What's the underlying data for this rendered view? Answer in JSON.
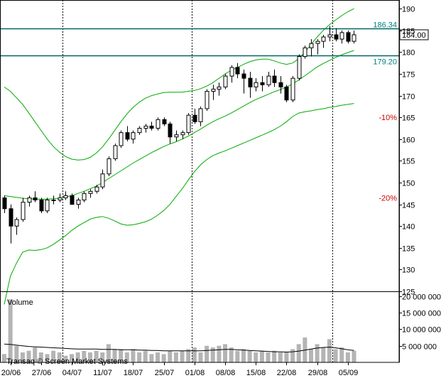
{
  "chart_data": [
    {
      "type": "candlestick",
      "title": "",
      "ylim": [
        125,
        192
      ],
      "y_ticks": [
        125,
        130,
        135,
        140,
        145,
        150,
        155,
        160,
        165,
        170,
        175,
        180,
        185,
        190
      ],
      "y_tick_labels": [
        "125",
        "130",
        "135",
        "140",
        "145",
        "150",
        "155",
        "160",
        "165",
        "170",
        "175",
        "180",
        "185",
        "190"
      ],
      "x_dates": [
        "2011-06-17",
        "2011-06-20",
        "2011-06-21",
        "2011-06-22",
        "2011-06-23",
        "2011-06-24",
        "2011-06-27",
        "2011-06-28",
        "2011-06-29",
        "2011-06-30",
        "2011-07-01",
        "2011-07-04",
        "2011-07-05",
        "2011-07-06",
        "2011-07-07",
        "2011-07-08",
        "2011-07-11",
        "2011-07-12",
        "2011-07-13",
        "2011-07-14",
        "2011-07-15",
        "2011-07-18",
        "2011-07-19",
        "2011-07-20",
        "2011-07-21",
        "2011-07-22",
        "2011-07-25",
        "2011-07-26",
        "2011-07-27",
        "2011-07-28",
        "2011-07-29",
        "2011-08-01",
        "2011-08-02",
        "2011-08-03",
        "2011-08-04",
        "2011-08-05",
        "2011-08-08",
        "2011-08-09",
        "2011-08-10",
        "2011-08-11",
        "2011-08-12",
        "2011-08-15",
        "2011-08-16",
        "2011-08-17",
        "2011-08-18",
        "2011-08-19",
        "2011-08-22",
        "2011-08-23",
        "2011-08-24",
        "2011-08-25",
        "2011-08-26",
        "2011-08-29",
        "2011-08-30",
        "2011-08-31",
        "2011-09-01",
        "2011-09-02",
        "2011-09-05",
        "2011-09-06"
      ],
      "x_tick_labels": [
        "20/06",
        "27/06",
        "04/07",
        "11/07",
        "18/07",
        "25/07",
        "01/08",
        "08/08",
        "15/08",
        "22/08",
        "29/08",
        "05/09"
      ],
      "x_tick_dates": [
        "2011-06-20",
        "2011-06-27",
        "2011-07-04",
        "2011-07-11",
        "2011-07-18",
        "2011-07-25",
        "2011-08-01",
        "2011-08-08",
        "2011-08-15",
        "2011-08-22",
        "2011-08-29",
        "2011-09-05"
      ],
      "month_separators": [
        "2011-07-01",
        "2011-08-01",
        "2011-09-01"
      ],
      "candles": [
        [
          146.5,
          147.0,
          143.0,
          144.0
        ],
        [
          144.0,
          145.0,
          136.0,
          140.0
        ],
        [
          140.0,
          142.0,
          138.0,
          141.5
        ],
        [
          141.5,
          146.5,
          141.0,
          145.5
        ],
        [
          145.5,
          147.0,
          144.5,
          146.5
        ],
        [
          146.5,
          148.0,
          145.5,
          146.0
        ],
        [
          146.0,
          146.5,
          143.0,
          143.5
        ],
        [
          143.5,
          146.5,
          143.0,
          146.0
        ],
        [
          146.0,
          147.0,
          145.0,
          146.0
        ],
        [
          146.0,
          147.5,
          145.5,
          146.5
        ],
        [
          146.5,
          148.0,
          146.0,
          147.0
        ],
        [
          147.0,
          147.5,
          145.0,
          145.0
        ],
        [
          145.0,
          146.5,
          144.0,
          146.0
        ],
        [
          146.0,
          148.0,
          145.5,
          147.5
        ],
        [
          147.5,
          148.5,
          146.5,
          148.0
        ],
        [
          148.0,
          149.5,
          147.5,
          149.0
        ],
        [
          149.0,
          153.0,
          148.5,
          152.0
        ],
        [
          152.0,
          156.0,
          151.5,
          155.5
        ],
        [
          155.5,
          159.0,
          155.0,
          158.5
        ],
        [
          158.5,
          162.0,
          158.0,
          161.5
        ],
        [
          161.5,
          163.0,
          159.5,
          160.0
        ],
        [
          160.0,
          162.0,
          159.0,
          161.5
        ],
        [
          161.5,
          163.0,
          161.0,
          162.5
        ],
        [
          162.5,
          163.5,
          161.5,
          163.0
        ],
        [
          163.0,
          164.0,
          162.0,
          162.5
        ],
        [
          162.5,
          165.0,
          162.0,
          164.5
        ],
        [
          164.5,
          165.0,
          163.0,
          163.5
        ],
        [
          163.5,
          164.0,
          159.0,
          160.5
        ],
        [
          160.5,
          162.0,
          159.5,
          161.0
        ],
        [
          161.0,
          162.0,
          160.0,
          161.5
        ],
        [
          161.5,
          166.0,
          161.0,
          165.5
        ],
        [
          165.5,
          167.0,
          163.5,
          164.0
        ],
        [
          164.0,
          167.5,
          163.0,
          167.0
        ],
        [
          167.0,
          171.5,
          166.5,
          171.0
        ],
        [
          171.0,
          172.5,
          169.0,
          171.5
        ],
        [
          171.5,
          173.0,
          170.0,
          172.0
        ],
        [
          172.0,
          175.0,
          171.5,
          174.5
        ],
        [
          174.5,
          177.0,
          173.0,
          176.5
        ],
        [
          176.5,
          177.5,
          174.0,
          175.0
        ],
        [
          175.0,
          176.0,
          170.5,
          174.0
        ],
        [
          174.0,
          175.5,
          169.5,
          172.0
        ],
        [
          172.0,
          174.0,
          171.0,
          173.0
        ],
        [
          173.0,
          174.5,
          171.0,
          172.5
        ],
        [
          172.5,
          175.5,
          172.0,
          174.5
        ],
        [
          174.5,
          176.0,
          172.0,
          173.0
        ],
        [
          173.0,
          174.5,
          170.5,
          172.0
        ],
        [
          172.0,
          172.5,
          168.5,
          169.0
        ],
        [
          169.0,
          174.5,
          168.5,
          174.0
        ],
        [
          174.0,
          179.5,
          173.5,
          179.0
        ],
        [
          179.0,
          181.5,
          178.5,
          181.0
        ],
        [
          181.0,
          183.0,
          179.0,
          182.0
        ],
        [
          182.0,
          183.0,
          179.5,
          182.5
        ],
        [
          182.5,
          184.0,
          181.0,
          183.5
        ],
        [
          183.5,
          186.0,
          182.5,
          184.0
        ],
        [
          184.0,
          185.5,
          182.5,
          183.0
        ],
        [
          183.0,
          185.0,
          182.0,
          184.5
        ],
        [
          184.5,
          185.0,
          182.0,
          182.5
        ],
        [
          182.5,
          185.0,
          182.0,
          184.0
        ]
      ],
      "candle_fields": [
        "open",
        "high",
        "low",
        "close"
      ],
      "bollinger_mid": [
        147.0,
        146.8,
        146.6,
        146.4,
        146.3,
        146.2,
        146.2,
        146.2,
        146.3,
        146.4,
        146.7,
        147.0,
        147.5,
        148.0,
        148.6,
        149.2,
        150.0,
        150.9,
        151.8,
        152.7,
        153.6,
        154.5,
        155.3,
        156.1,
        156.9,
        157.6,
        158.3,
        158.9,
        159.4,
        160.0,
        160.7,
        161.5,
        162.3,
        163.2,
        164.0,
        164.7,
        165.3,
        166.0,
        166.8,
        167.6,
        168.4,
        169.1,
        169.7,
        170.3,
        170.9,
        171.4,
        172.0,
        172.7,
        173.6,
        174.6,
        175.6,
        176.6,
        177.4,
        178.1,
        178.8,
        179.4,
        179.9,
        180.4
      ],
      "bollinger_upper": [
        172.0,
        171.0,
        169.5,
        168.0,
        166.0,
        164.0,
        162.0,
        160.0,
        158.3,
        157.0,
        156.0,
        155.4,
        155.2,
        155.3,
        155.8,
        156.8,
        158.2,
        160.0,
        162.0,
        164.0,
        165.8,
        167.3,
        168.5,
        169.4,
        170.0,
        170.4,
        170.7,
        170.8,
        170.8,
        170.8,
        171.0,
        171.2,
        171.6,
        172.2,
        173.0,
        174.0,
        175.0,
        175.8,
        176.5,
        177.2,
        177.8,
        178.2,
        178.4,
        178.4,
        178.0,
        177.5,
        177.2,
        177.5,
        178.5,
        180.0,
        181.8,
        183.5,
        185.0,
        186.3,
        187.4,
        188.4,
        189.3,
        190.0
      ],
      "bollinger_lower": [
        122.0,
        128.5,
        131.5,
        134.0,
        134.5,
        134.4,
        134.6,
        135.0,
        135.8,
        136.8,
        137.8,
        139.0,
        140.0,
        140.8,
        141.6,
        142.0,
        142.2,
        141.8,
        141.2,
        140.5,
        140.2,
        140.3,
        140.6,
        141.0,
        141.6,
        142.5,
        143.6,
        145.0,
        146.8,
        148.6,
        150.6,
        152.5,
        154.1,
        155.3,
        156.2,
        156.8,
        157.3,
        157.9,
        158.5,
        159.1,
        159.7,
        160.3,
        160.9,
        161.5,
        162.2,
        163.0,
        164.0,
        165.2,
        166.0,
        166.3,
        166.5,
        166.8,
        167.0,
        167.3,
        167.5,
        167.8,
        168.0,
        168.2
      ],
      "horizontal_levels": [
        {
          "value": 185.4,
          "label": ""
        },
        {
          "value": 179.2,
          "label": "179.20"
        }
      ],
      "price_labels": [
        {
          "value": 186.34,
          "label": "186.34"
        },
        {
          "value": 184.0,
          "label": "184.00",
          "boxed": true
        }
      ],
      "percent_labels": [
        {
          "value": 165.0,
          "label": "-10%"
        },
        {
          "value": 146.5,
          "label": "-20%"
        }
      ],
      "volume": {
        "title": "Volume",
        "ylim": [
          0,
          21000000
        ],
        "y_ticks": [
          5000000,
          10000000,
          15000000,
          20000000
        ],
        "y_tick_labels": [
          "5 000 000",
          "10 000 000",
          "15 000 000",
          "20 000 000"
        ],
        "bars": [
          2500000,
          19000000,
          5000000,
          3000000,
          3500000,
          4500000,
          3000000,
          2500000,
          3500000,
          3000000,
          2000000,
          2500000,
          3000000,
          3500000,
          3000000,
          3500000,
          3000000,
          5500000,
          4000000,
          4000000,
          3000000,
          4000000,
          3000000,
          3500000,
          2500000,
          3000000,
          2500000,
          3500000,
          3000000,
          3500000,
          4000000,
          4500000,
          3000000,
          5000000,
          4500000,
          5000000,
          5500000,
          4500000,
          3500000,
          4000000,
          3500000,
          3000000,
          3500000,
          3000000,
          3500000,
          3000000,
          3000000,
          4000000,
          5500000,
          7500000,
          4000000,
          5500000,
          4500000,
          7000000,
          4000000,
          4500000,
          3000000,
          3500000
        ],
        "moving_average": [
          5500000,
          5400000,
          5200000,
          5000000,
          4800000,
          4700000,
          4600000,
          4500000,
          4400000,
          4300000,
          4200000,
          4100000,
          4000000,
          4000000,
          4000000,
          4000000,
          3900000,
          3900000,
          3900000,
          3800000,
          3800000,
          3800000,
          3700000,
          3700000,
          3600000,
          3600000,
          3500000,
          3500000,
          3500000,
          3500000,
          3500000,
          3500000,
          3500000,
          3600000,
          3700000,
          3800000,
          3900000,
          3900000,
          3800000,
          3700000,
          3600000,
          3500000,
          3400000,
          3300000,
          3200000,
          3200000,
          3100000,
          3200000,
          3400000,
          3700000,
          4000000,
          4300000,
          4500000,
          4600000,
          4400000,
          4100000,
          3800000,
          3600000
        ]
      },
      "colors": {
        "bollinger": "#00aa00",
        "levels": "#006666",
        "candle": "#000000",
        "volume_bar": "#b4b4b4",
        "grid": "#000000",
        "percent_text": "#cc0000",
        "level_text": "#008080",
        "boxed_text": "#000000"
      }
    }
  ],
  "footer": {
    "watermark": "Transaq © Screen Market Systems"
  }
}
